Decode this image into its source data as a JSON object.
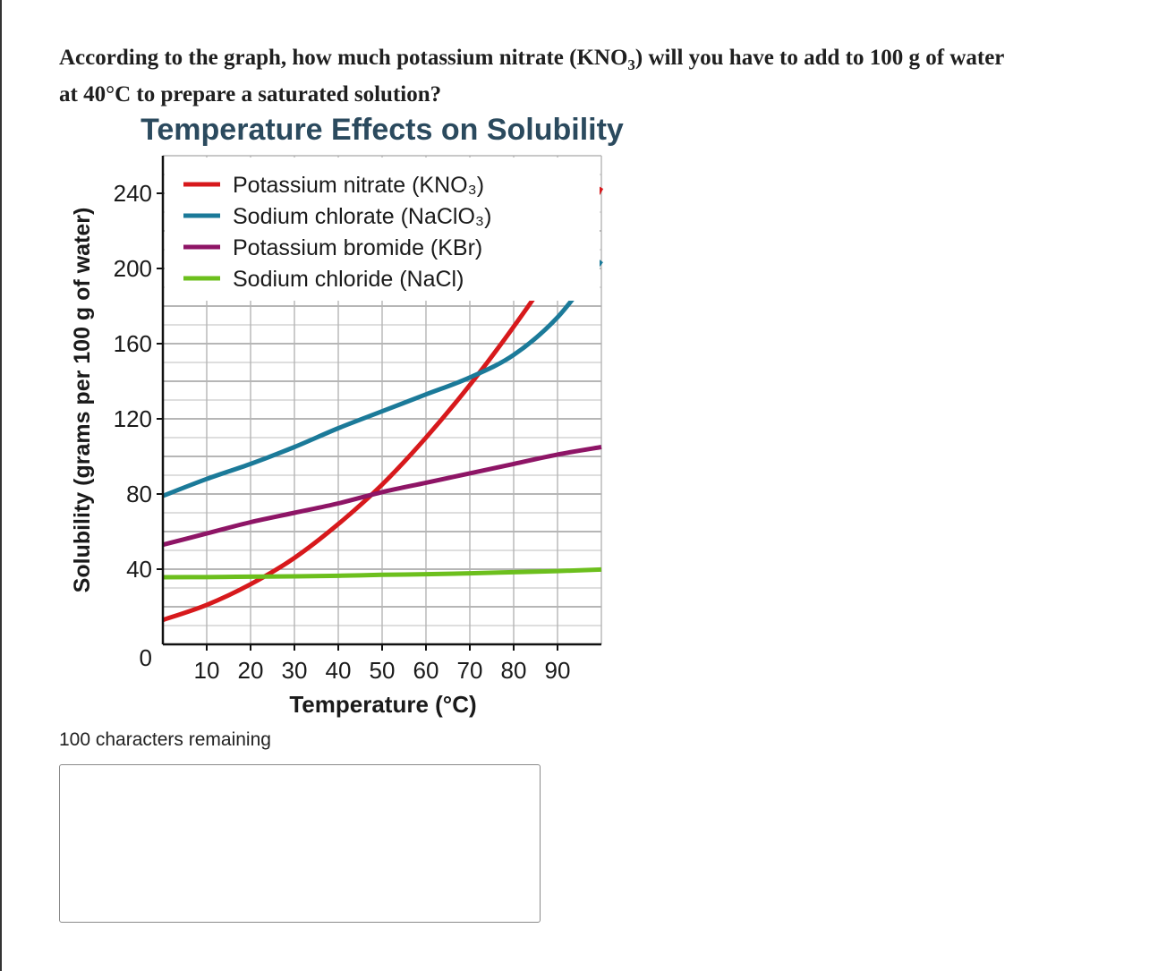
{
  "question": {
    "line1_part1": "According to the graph, how much potassium nitrate (KNO",
    "line1_sub": "3",
    "line1_part2": ") will you have to add to 100 g of water",
    "line2": "at 40°C to prepare a saturated solution?"
  },
  "chart_data": {
    "type": "line",
    "title": "Temperature Effects on Solubility",
    "xlabel": "Temperature (°C)",
    "ylabel": "Solubility (grams per 100 g of water)",
    "xlim": [
      0,
      100
    ],
    "ylim": [
      0,
      260
    ],
    "x_tick_labels": [
      "10",
      "20",
      "30",
      "40",
      "50",
      "60",
      "70",
      "80",
      "90"
    ],
    "y_tick_labels": [
      "0",
      "40",
      "80",
      "120",
      "160",
      "200",
      "240"
    ],
    "grid": true,
    "legend_position": "top-left",
    "series": [
      {
        "name": "Potassium nitrate (KNO₃)",
        "color": "#d7191c",
        "x": [
          0,
          10,
          20,
          30,
          40,
          50,
          60,
          70,
          80,
          90,
          100
        ],
        "y": [
          13,
          21,
          32,
          46,
          64,
          85,
          110,
          138,
          169,
          203,
          243
        ]
      },
      {
        "name": "Sodium chlorate (NaClO₃)",
        "color": "#1b7a99",
        "x": [
          0,
          10,
          20,
          30,
          40,
          50,
          60,
          70,
          80,
          90,
          100
        ],
        "y": [
          79,
          88,
          96,
          105,
          115,
          124,
          133,
          142,
          154,
          174,
          204
        ]
      },
      {
        "name": "Potassium bromide (KBr)",
        "color": "#8e1566",
        "x": [
          0,
          10,
          20,
          30,
          40,
          50,
          60,
          70,
          80,
          90,
          100
        ],
        "y": [
          53,
          59,
          65,
          70,
          75,
          81,
          86,
          91,
          96,
          101,
          105
        ]
      },
      {
        "name": "Sodium chloride (NaCl)",
        "color": "#6cbf1d",
        "x": [
          0,
          10,
          20,
          30,
          40,
          50,
          60,
          70,
          80,
          90,
          100
        ],
        "y": [
          35.7,
          35.8,
          36.0,
          36.2,
          36.5,
          37.0,
          37.3,
          37.8,
          38.4,
          39.0,
          39.8
        ]
      }
    ]
  },
  "answer": {
    "counter": "100 characters remaining",
    "value": ""
  }
}
